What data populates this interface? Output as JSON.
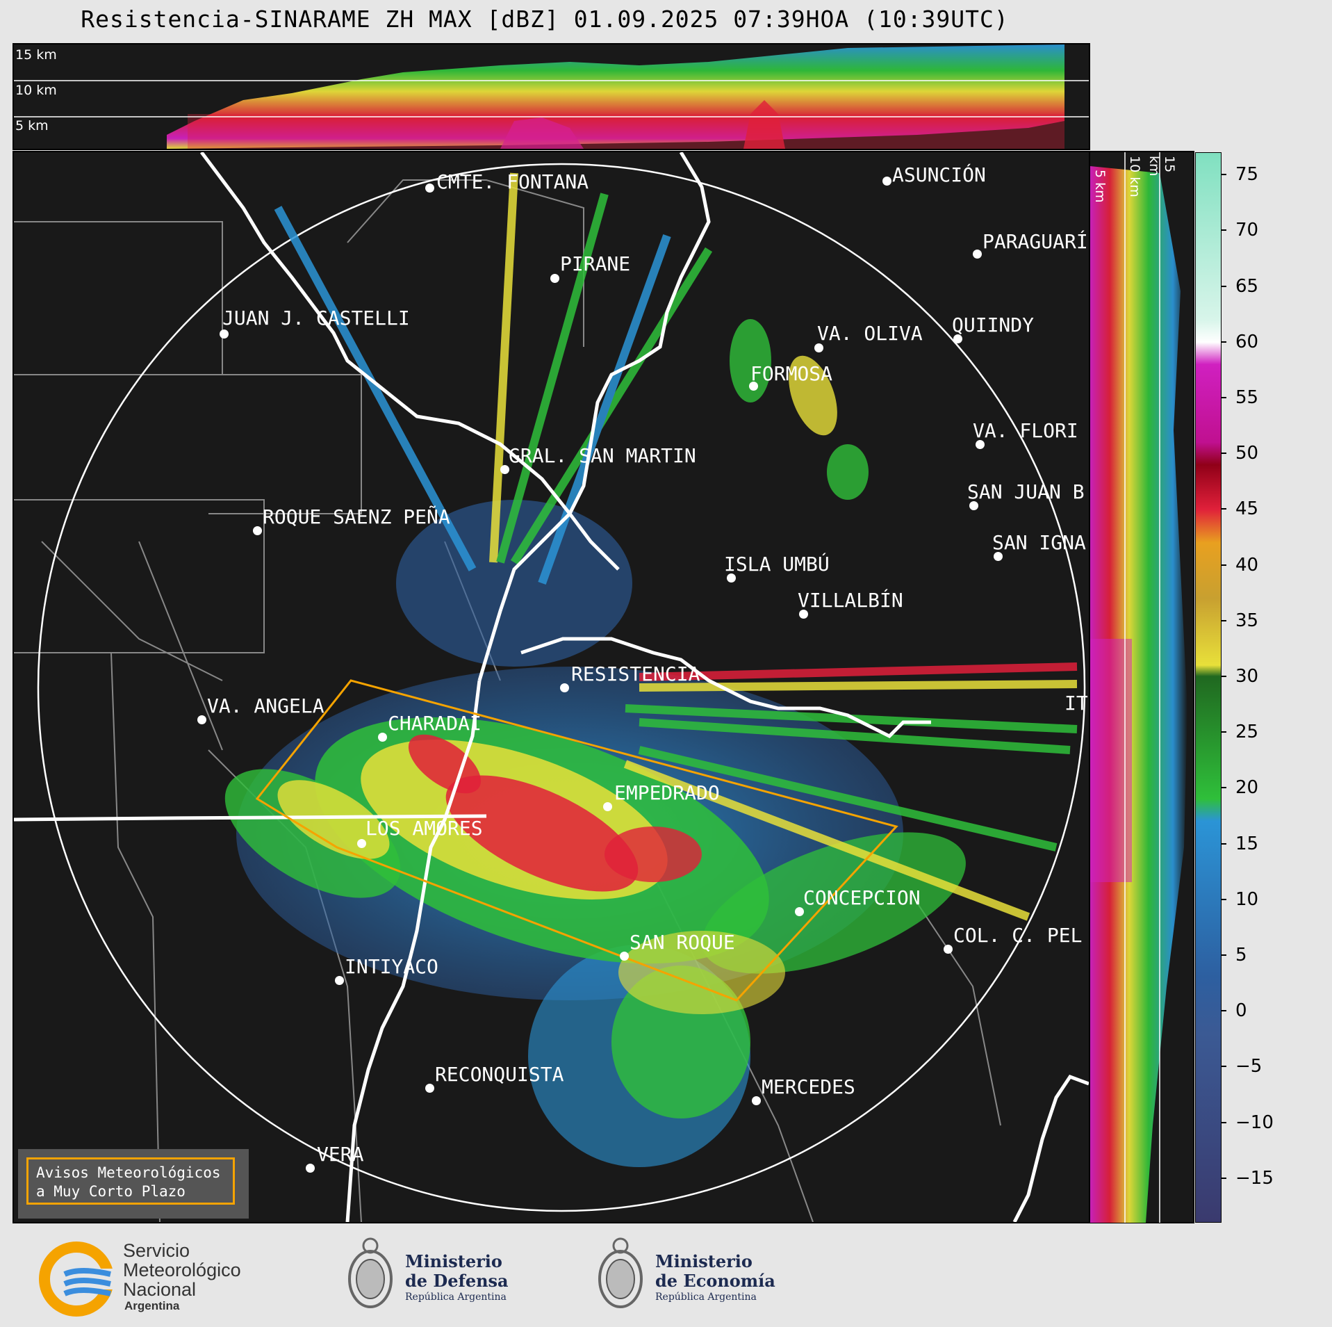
{
  "title": "Resistencia-SINARAME ZH MAX [dBZ] 01.09.2025 07:39HOA (10:39UTC)",
  "top_panel": {
    "altitude_labels": [
      "15 km",
      "10 km",
      "5 km"
    ]
  },
  "side_panel": {
    "altitude_labels": [
      "5 km",
      "10 km",
      "15 km"
    ]
  },
  "colorbar": {
    "unit": "dBZ",
    "ticks": [
      "75",
      "70",
      "65",
      "60",
      "55",
      "50",
      "45",
      "40",
      "35",
      "30",
      "25",
      "20",
      "15",
      "10",
      "5",
      "0",
      "−5",
      "−10",
      "−15"
    ],
    "min": -19,
    "max": 77,
    "colors": {
      "range_neg": "#3a3a6e",
      "range_low": "#2d5fa0",
      "range_blue": "#2b94d6",
      "range_green": "#2fbf3a",
      "range_yellow": "#e8e03a",
      "range_orange": "#e8a020",
      "range_red": "#e0203a",
      "range_magenta": "#d020c0",
      "range_mint": "#80e0c0"
    }
  },
  "map": {
    "cities": [
      {
        "name": "CMTE. FONTANA"
      },
      {
        "name": "ASUNCIÓN"
      },
      {
        "name": "PARAGUARÍ"
      },
      {
        "name": "PIRANE"
      },
      {
        "name": "JUAN J. CASTELLI"
      },
      {
        "name": "VA. OLIVA"
      },
      {
        "name": "QUIINDY"
      },
      {
        "name": "FORMOSA"
      },
      {
        "name": "VA. FLORI"
      },
      {
        "name": "GRAL. SAN MARTIN"
      },
      {
        "name": "SAN JUAN B"
      },
      {
        "name": "ROQUE SAENZ PEÑA"
      },
      {
        "name": "SAN IGNA"
      },
      {
        "name": "ISLA UMBÚ"
      },
      {
        "name": "VILLALBÍN"
      },
      {
        "name": "RESISTENCIA"
      },
      {
        "name": "VA. ANGELA"
      },
      {
        "name": "CHARADAI"
      },
      {
        "name": "EMPEDRADO"
      },
      {
        "name": "LOS AMORES"
      },
      {
        "name": "CONCEPCION"
      },
      {
        "name": "SAN ROQUE"
      },
      {
        "name": "COL. C. PEL"
      },
      {
        "name": "INTIYACO"
      },
      {
        "name": "RECONQUISTA"
      },
      {
        "name": "MERCEDES"
      },
      {
        "name": "VERA"
      },
      {
        "name": "IT"
      }
    ]
  },
  "aviso": {
    "line1": "Avisos Meteorológicos",
    "line2": "a Muy Corto Plazo"
  },
  "logos": {
    "smn": {
      "line1": "Servicio",
      "line2": "Meteorológico",
      "line3": "Nacional",
      "line4": "Argentina"
    },
    "defensa": {
      "line1": "Ministerio",
      "line2": "de Defensa",
      "line3": "República Argentina"
    },
    "economia": {
      "line1": "Ministerio",
      "line2": "de Economía",
      "line3": "República Argentina"
    }
  }
}
